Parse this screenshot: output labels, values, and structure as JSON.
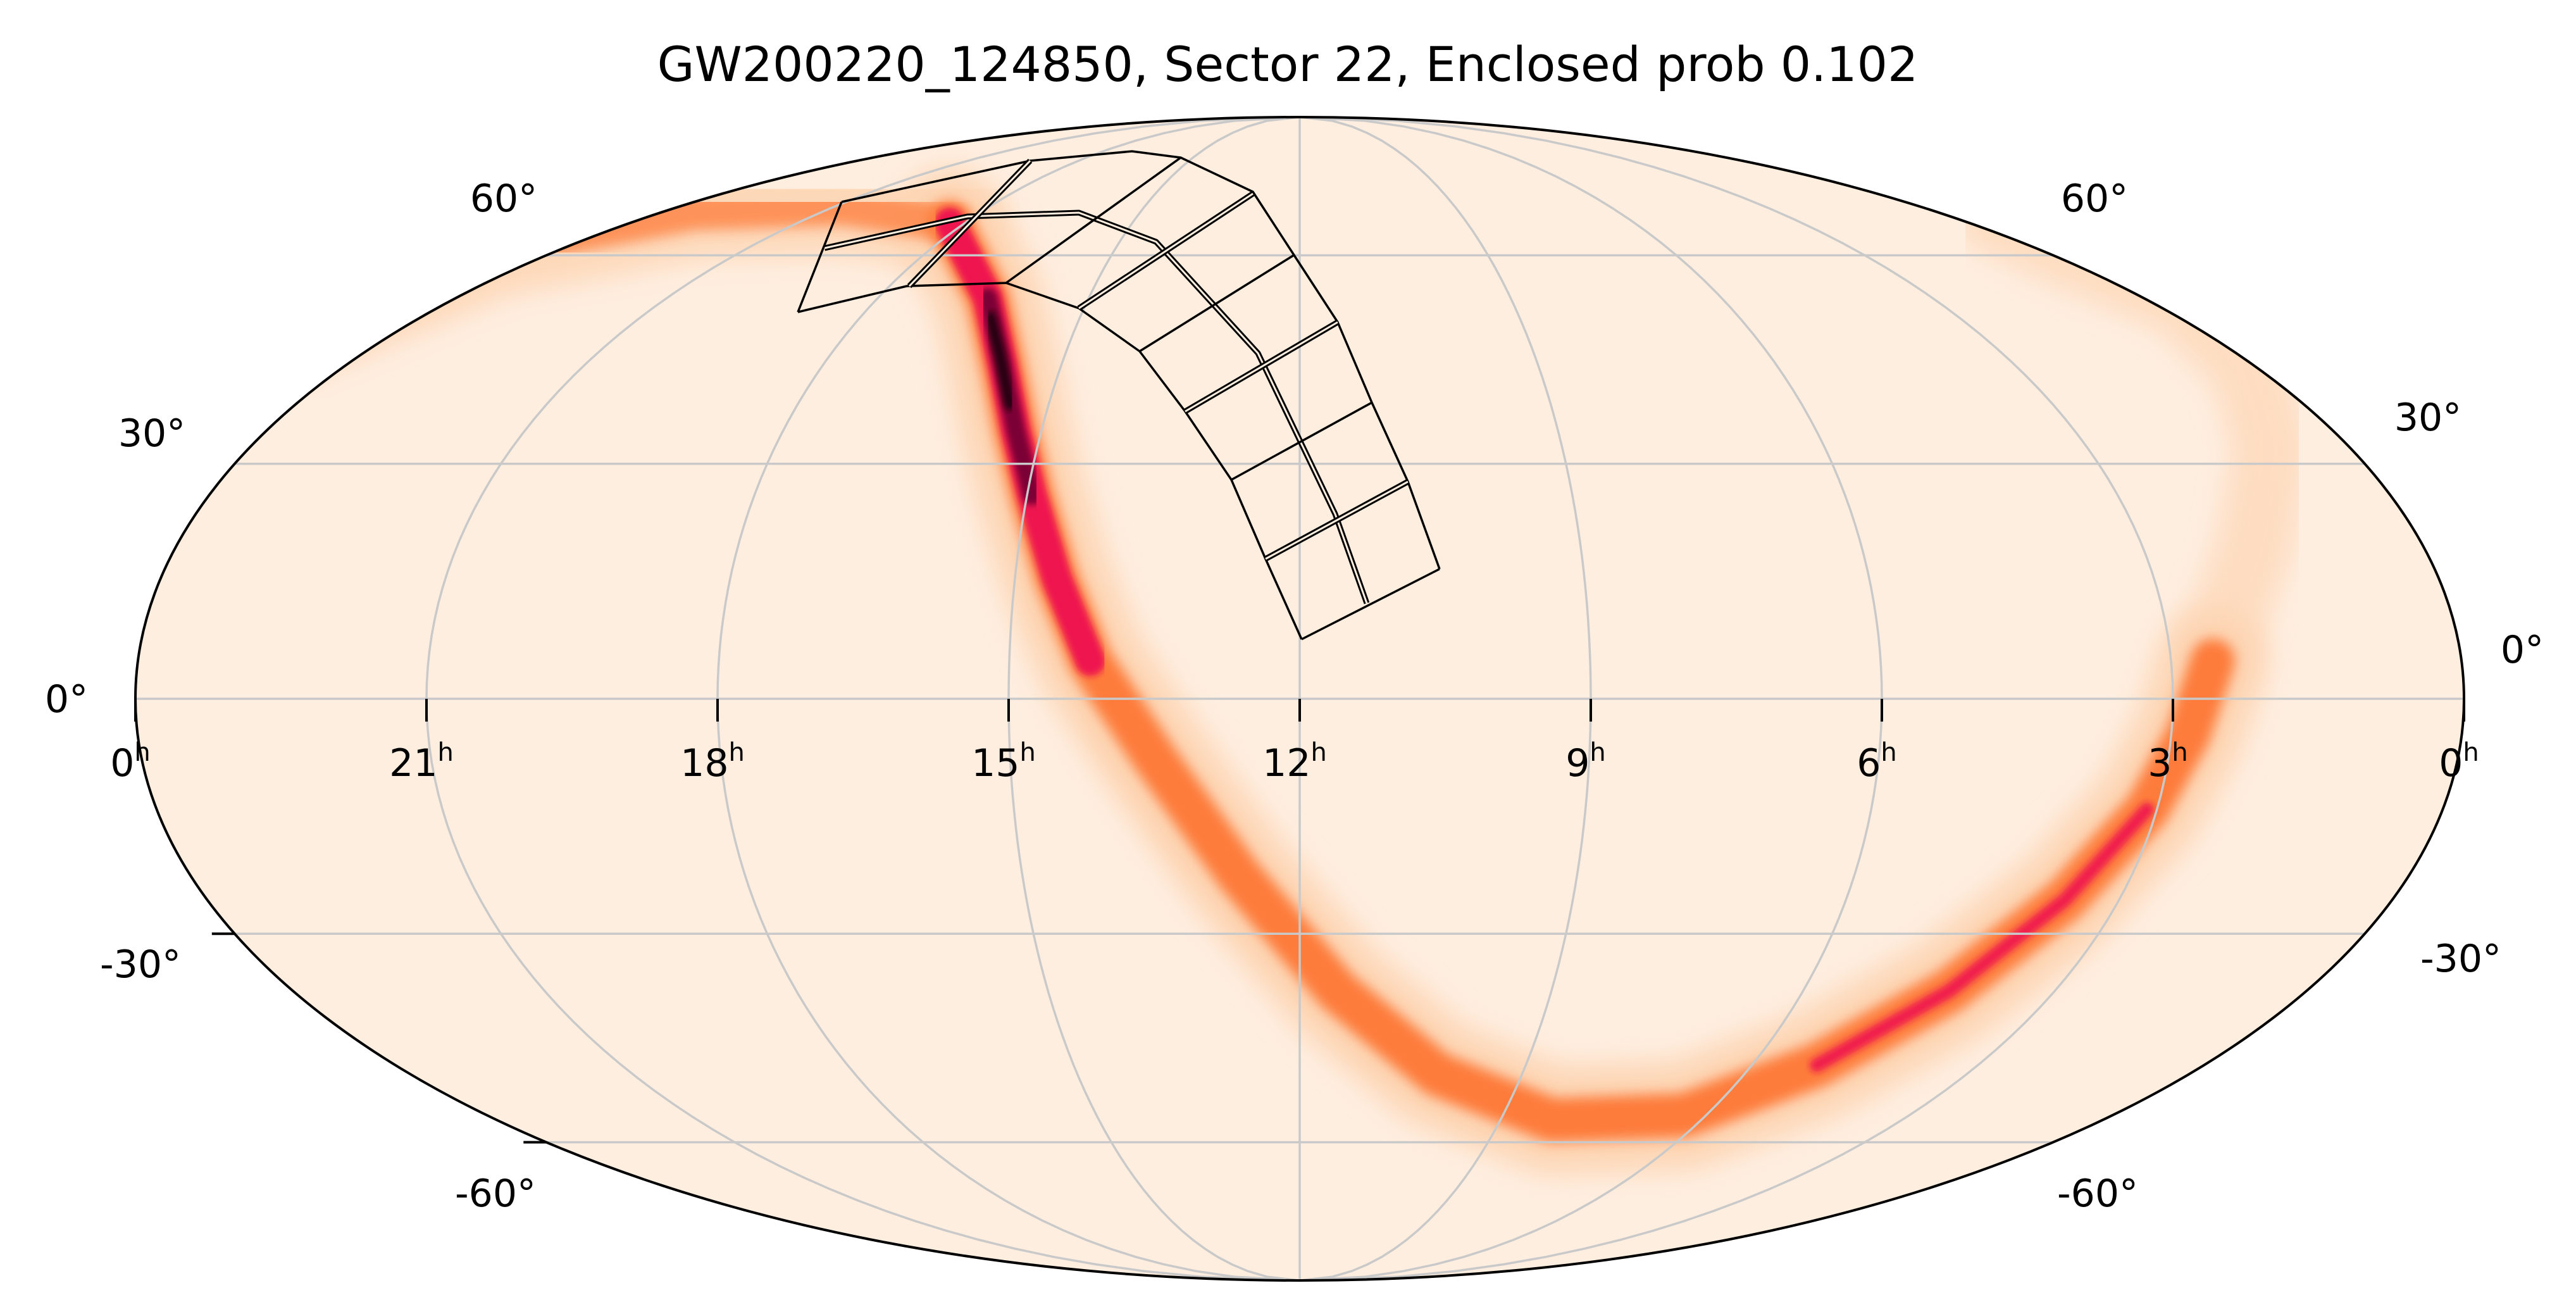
{
  "chart_data": {
    "type": "heatmap",
    "projection": "mollweide",
    "title": "GW200220_124850, Sector 22, Enclosed prob 0.102",
    "event": "GW200220_124850",
    "sector": 22,
    "enclosed_prob": 0.102,
    "ra_ticks": [
      {
        "value": "0",
        "unit": "h"
      },
      {
        "value": "21",
        "unit": "h"
      },
      {
        "value": "18",
        "unit": "h"
      },
      {
        "value": "15",
        "unit": "h"
      },
      {
        "value": "12",
        "unit": "h"
      },
      {
        "value": "9",
        "unit": "h"
      },
      {
        "value": "6",
        "unit": "h"
      },
      {
        "value": "3",
        "unit": "h"
      },
      {
        "value": "0",
        "unit": "h"
      }
    ],
    "dec_ticks_left": [
      "60°",
      "30°",
      "0°",
      "-30°",
      "-60°"
    ],
    "dec_ticks_right": [
      "60°",
      "30°",
      "0°",
      "-30°",
      "-60°"
    ],
    "grid": true,
    "ra_grid_hours": [
      3,
      6,
      9,
      12,
      15,
      18,
      21
    ],
    "dec_grid_deg": [
      -60,
      -30,
      0,
      30,
      60
    ],
    "colors": {
      "background": "#feeee0",
      "grid": "#c9c9c9",
      "pale": "#fdd5b4",
      "orange": "#fd7b3a",
      "red": "#ef1350",
      "dark": "#7a0035",
      "darkest": "#200008",
      "footprint": "#000000"
    }
  }
}
